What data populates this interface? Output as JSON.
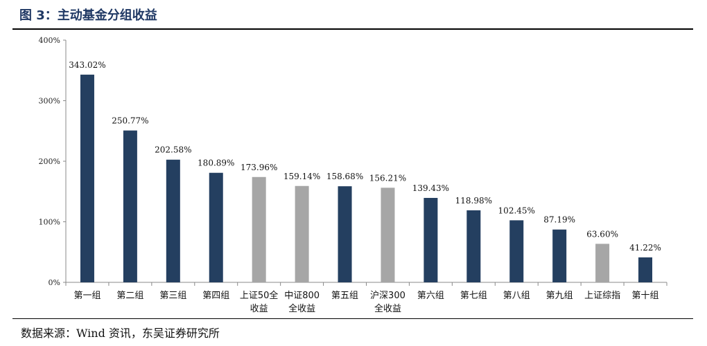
{
  "figure_title": "图 3：主动基金分组收益",
  "source": "数据来源：Wind 资讯，东吴证券研究所",
  "colors": {
    "dark": "#243f60",
    "gray": "#a6a6a6"
  },
  "chart_data": {
    "type": "bar",
    "title": "",
    "xlabel": "",
    "ylabel": "",
    "ylim": [
      0,
      400
    ],
    "yticks": [
      0,
      100,
      200,
      300,
      400
    ],
    "ytick_labels": [
      "0%",
      "100%",
      "200%",
      "300%",
      "400%"
    ],
    "grid": false,
    "legend": "none",
    "categories": [
      [
        "第一组"
      ],
      [
        "第二组"
      ],
      [
        "第三组"
      ],
      [
        "第四组"
      ],
      [
        "上证50全",
        "收益"
      ],
      [
        "中证800",
        "全收益"
      ],
      [
        "第五组"
      ],
      [
        "沪深300",
        "全收益"
      ],
      [
        "第六组"
      ],
      [
        "第七组"
      ],
      [
        "第八组"
      ],
      [
        "第九组"
      ],
      [
        "上证综指"
      ],
      [
        "第十组"
      ]
    ],
    "values": [
      343.02,
      250.77,
      202.58,
      180.89,
      173.96,
      159.14,
      158.68,
      156.21,
      139.43,
      118.98,
      102.45,
      87.19,
      63.6,
      41.22
    ],
    "value_labels": [
      "343.02%",
      "250.77%",
      "202.58%",
      "180.89%",
      "173.96%",
      "159.14%",
      "158.68%",
      "156.21%",
      "139.43%",
      "118.98%",
      "102.45%",
      "87.19%",
      "63.60%",
      "41.22%"
    ],
    "bar_colors": [
      "dark",
      "dark",
      "dark",
      "dark",
      "gray",
      "gray",
      "dark",
      "gray",
      "dark",
      "dark",
      "dark",
      "dark",
      "gray",
      "dark"
    ]
  }
}
